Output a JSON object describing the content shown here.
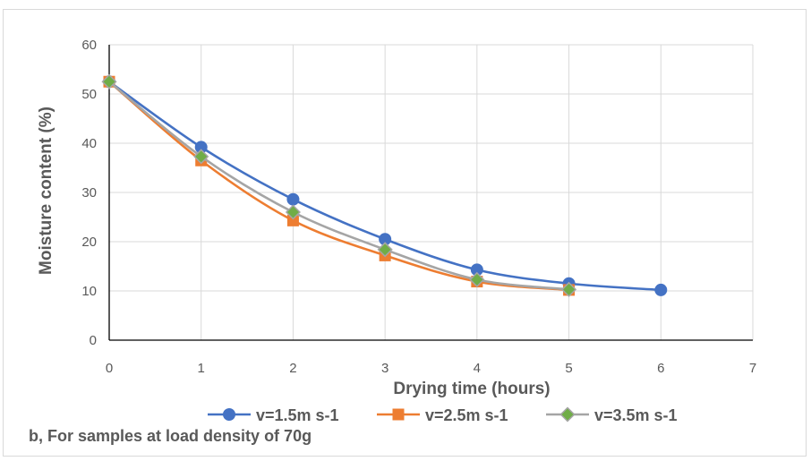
{
  "caption": "b, For samples at load density of 70g",
  "chart_data": {
    "type": "line",
    "title": "",
    "xlabel": "Drying time (hours)",
    "ylabel": "Moisture content (%)",
    "xlim": [
      0,
      7
    ],
    "ylim": [
      0,
      60
    ],
    "xticks": [
      0,
      1,
      2,
      3,
      4,
      5,
      6,
      7
    ],
    "yticks": [
      0,
      10,
      20,
      30,
      40,
      50,
      60
    ],
    "grid": true,
    "legend_position": "bottom",
    "series": [
      {
        "name": "v=1.5m s-1",
        "color": "#4472c4",
        "marker": "circle",
        "x": [
          0,
          1,
          2,
          3,
          4,
          5,
          6
        ],
        "y": [
          52.5,
          39.2,
          28.6,
          20.5,
          14.3,
          11.5,
          10.2
        ]
      },
      {
        "name": "v=2.5m s-1",
        "color": "#ed7d31",
        "marker": "square",
        "x": [
          0,
          1,
          2,
          3,
          4,
          5
        ],
        "y": [
          52.5,
          36.5,
          24.3,
          17.2,
          11.9,
          10.2
        ]
      },
      {
        "name": "v=3.5m s-1",
        "color": "#a5a5a5",
        "marker_fill": "#70ad47",
        "marker": "diamond",
        "x": [
          0,
          1,
          2,
          3,
          4,
          5
        ],
        "y": [
          52.5,
          37.3,
          26.0,
          18.4,
          12.3,
          10.3
        ]
      }
    ]
  }
}
